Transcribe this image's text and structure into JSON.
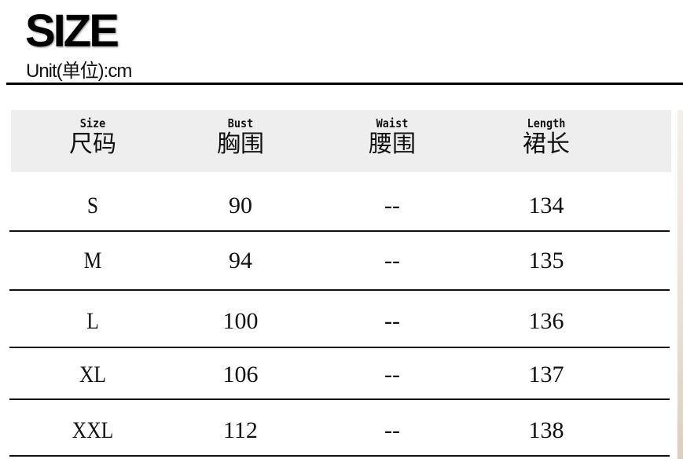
{
  "title": "SIZE",
  "unit": "Unit(单位):cm",
  "table": {
    "headers": [
      {
        "en": "Size",
        "zh": "尺码"
      },
      {
        "en": "Bust",
        "zh": "胸围"
      },
      {
        "en": "Waist",
        "zh": "腰围"
      },
      {
        "en": "Length",
        "zh": "裙长"
      }
    ],
    "rows": [
      [
        "S",
        "90",
        "--",
        "134"
      ],
      [
        "M",
        "94",
        "--",
        "135"
      ],
      [
        "L",
        "100",
        "--",
        "136"
      ],
      [
        "XL",
        "106",
        "--",
        "137"
      ],
      [
        "XXL",
        "112",
        "--",
        "138"
      ]
    ]
  },
  "colors": {
    "header_bg": "#eeeeee",
    "lines": "#111111"
  }
}
